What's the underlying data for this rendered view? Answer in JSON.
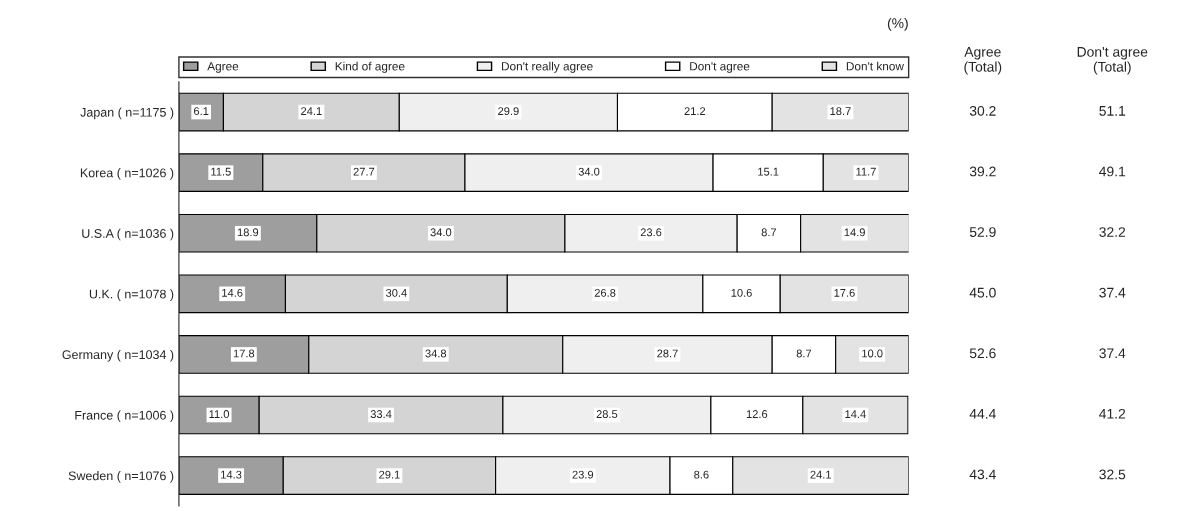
{
  "chart_data": {
    "type": "bar",
    "orientation": "horizontal",
    "stacked": true,
    "legend": "top",
    "tick_labels": "y",
    "xlim": [
      0,
      100
    ],
    "grid": false,
    "annotations": [
      "(%)",
      "Agree\n(Total)",
      "Don't agree\n(Total)",
      "30.2",
      "51.1",
      "39.2",
      "49.1",
      "52.9",
      "32.2",
      "45.0",
      "37.4",
      "52.6",
      "37.4",
      "44.4",
      "41.2",
      "43.4",
      "32.5"
    ],
    "categories": [
      "Japan ( n=1175 )",
      "Korea ( n=1026 )",
      "U.S.A ( n=1036 )",
      "U.K. ( n=1078 )",
      "Germany ( n=1034 )",
      "France ( n=1006 )",
      "Sweden ( n=1076 )"
    ],
    "series": [
      {
        "name": "Agree",
        "color": "#9e9e9e",
        "values": [
          6.1,
          11.5,
          18.9,
          14.6,
          17.8,
          11.0,
          14.3
        ],
        "value_labels": [
          "6.1",
          "11.5",
          "18.9",
          "14.6",
          "17.8",
          "11.0",
          "14.3"
        ]
      },
      {
        "name": "Kind of agree",
        "color": "#d4d4d4",
        "values": [
          24.1,
          27.7,
          34.0,
          30.4,
          34.8,
          33.4,
          29.1
        ],
        "value_labels": [
          "24.1",
          "27.7",
          "34.0",
          "30.4",
          "34.8",
          "33.4",
          "29.1"
        ]
      },
      {
        "name": "Don't really agree",
        "color": "#efefef",
        "values": [
          29.9,
          34.0,
          23.6,
          26.8,
          28.7,
          28.5,
          23.9
        ],
        "value_labels": [
          "29.9",
          "34.0",
          "23.6",
          "26.8",
          "28.7",
          "28.5",
          "23.9"
        ]
      },
      {
        "name": "Don't agree",
        "color": "#ffffff",
        "values": [
          21.2,
          15.1,
          8.7,
          10.6,
          8.7,
          12.6,
          8.6
        ],
        "value_labels": [
          "21.2",
          "15.1",
          "8.7",
          "10.6",
          "8.7",
          "12.6",
          "8.6"
        ]
      },
      {
        "name": "Don't know",
        "color": "#e3e3e3",
        "values": [
          18.7,
          11.7,
          14.9,
          17.6,
          10.0,
          14.4,
          24.1
        ],
        "value_labels": [
          "18.7",
          "11.7",
          "14.9",
          "17.6",
          "10.0",
          "14.4",
          "24.1"
        ]
      }
    ]
  }
}
